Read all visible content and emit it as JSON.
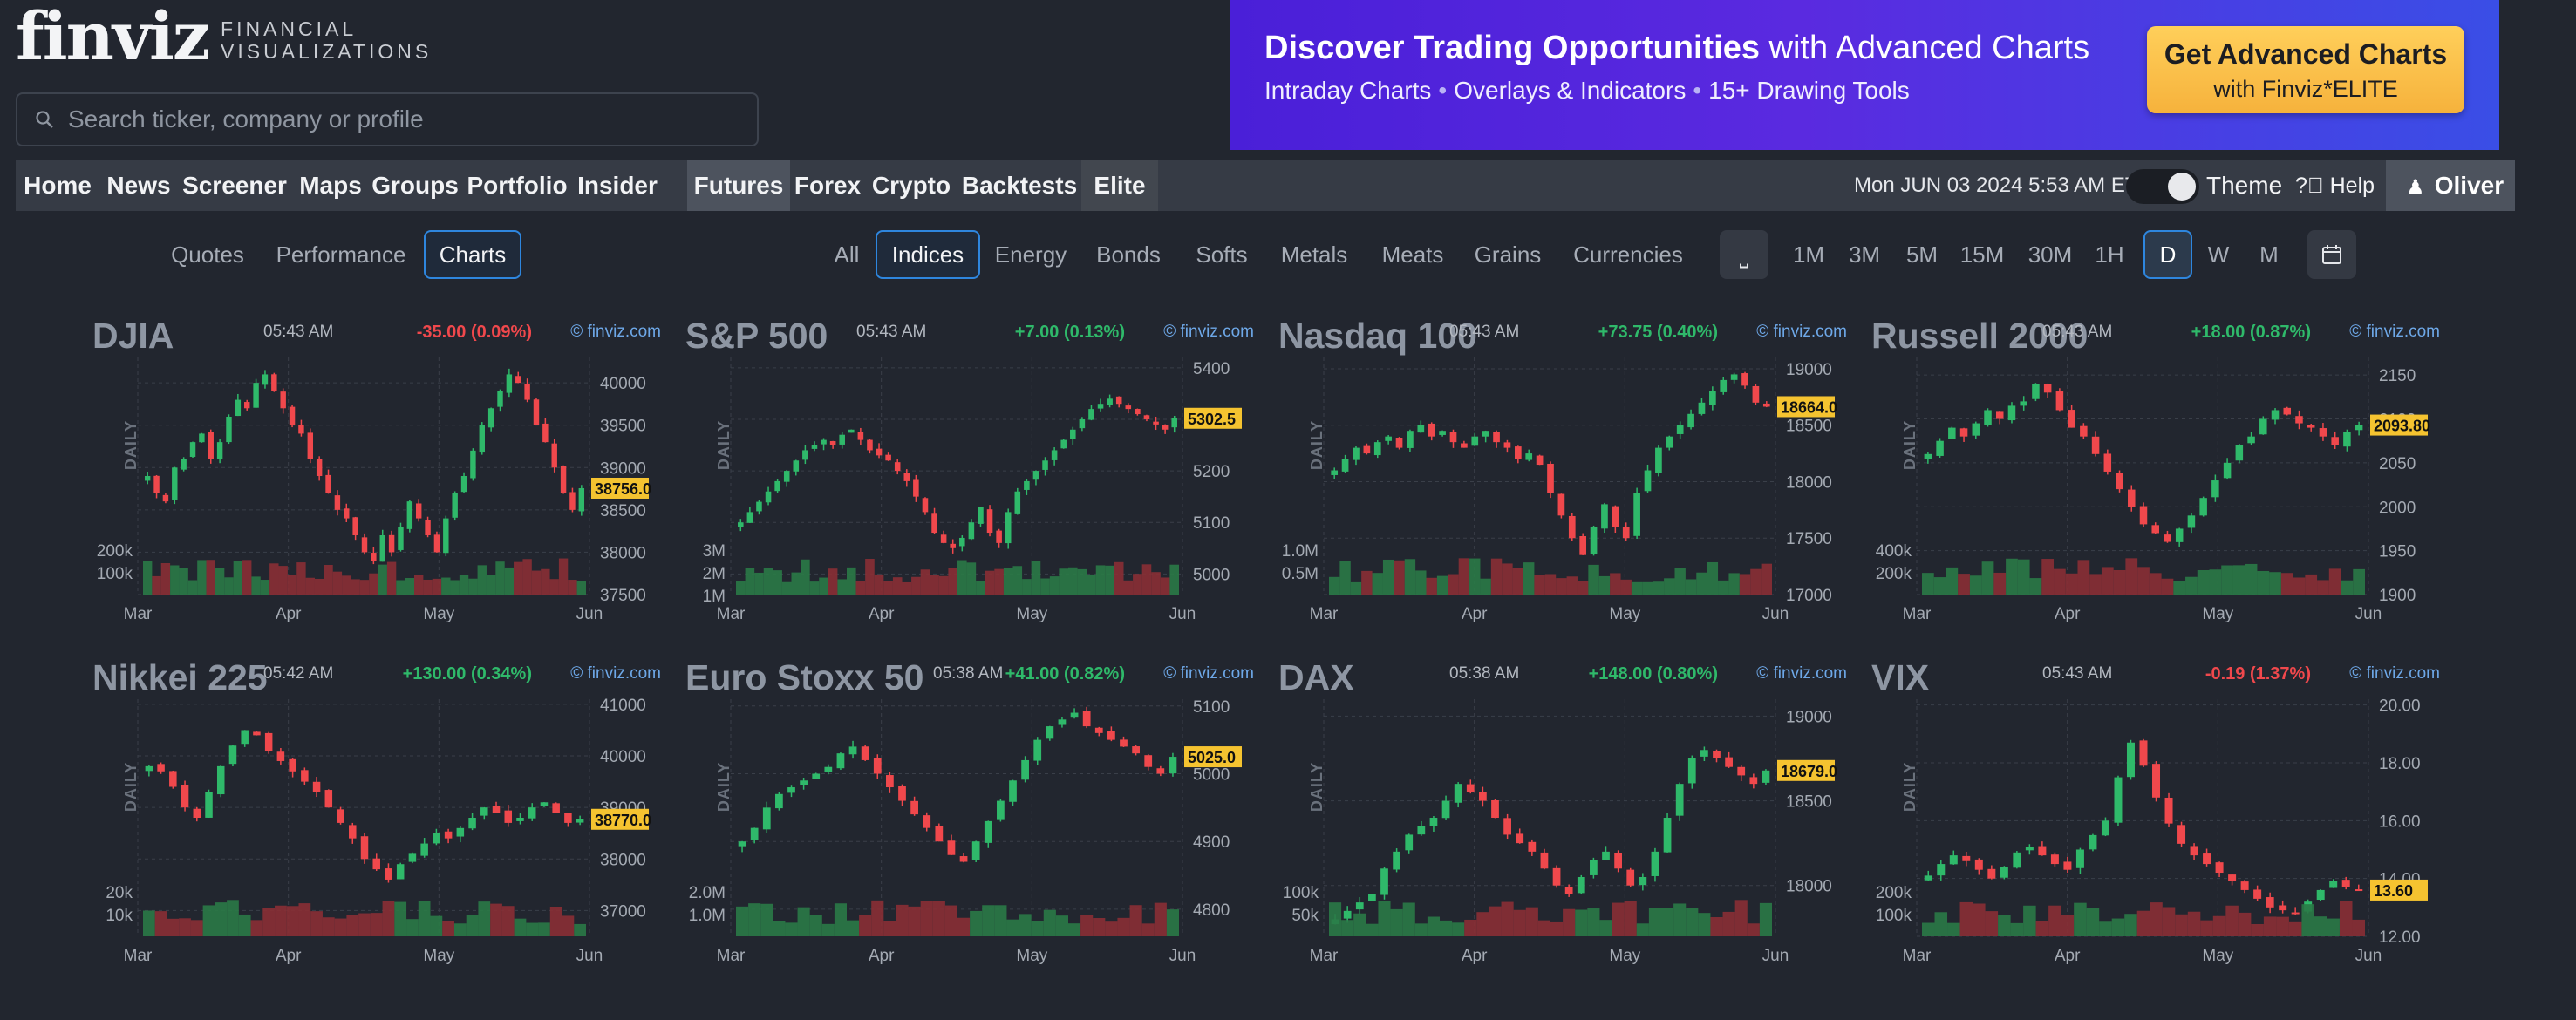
{
  "header": {
    "logo_word": "finviz",
    "logo_tagline": "FINANCIAL VISUALIZATIONS",
    "search_placeholder": "Search ticker, company or profile"
  },
  "banner": {
    "title_bold": "Discover Trading Opportunities",
    "title_rest": "with Advanced Charts",
    "features": [
      "Intraday Charts",
      "Overlays & Indicators",
      "15+ Drawing Tools"
    ],
    "button_line1": "Get Advanced Charts",
    "button_line2": "with Finviz*ELITE"
  },
  "nav": {
    "items": [
      "Home",
      "News",
      "Screener",
      "Maps",
      "Groups",
      "Portfolio",
      "Insider",
      "Futures",
      "Forex",
      "Crypto",
      "Backtests",
      "Elite"
    ],
    "active": "Futures",
    "datetime": "Mon JUN 03 2024 5:53 AM ET",
    "theme_label": "Theme",
    "help_label": "Help",
    "user_label": "Oliver"
  },
  "view_tabs": {
    "items": [
      "Quotes",
      "Performance",
      "Charts"
    ],
    "active": "Charts"
  },
  "category_tabs": {
    "items": [
      "All",
      "Indices",
      "Energy",
      "Bonds",
      "Softs",
      "Metals",
      "Meats",
      "Grains",
      "Currencies"
    ],
    "active": "Indices"
  },
  "timeframes": {
    "items": [
      "1M",
      "3M",
      "5M",
      "15M",
      "30M",
      "1H",
      "D",
      "W",
      "M"
    ],
    "active": "D"
  },
  "colors": {
    "up": "#2fb96a",
    "down": "#f0484c",
    "accent": "#2e86de",
    "price_tag": "#f5c330",
    "background": "#22262f"
  },
  "chart_data": [
    {
      "type": "candlestick",
      "title": "DJIA",
      "time": "05:43 AM",
      "change": "-35.00 (0.09%)",
      "direction": "down",
      "source": "© finviz.com",
      "period_label": "DAILY",
      "price_tag": "38756.0",
      "y_ticks": [
        "40000",
        "39500",
        "39000",
        "38500",
        "38000",
        "37500"
      ],
      "ylim": [
        37500,
        40300
      ],
      "volume_ticks": [
        "200k",
        "100k"
      ],
      "x_ticks": [
        "Mar",
        "Apr",
        "May",
        "Jun"
      ],
      "close": [
        38900,
        38700,
        38600,
        39000,
        39100,
        39300,
        39400,
        39100,
        39300,
        39600,
        39800,
        39700,
        40000,
        40100,
        39900,
        39700,
        39500,
        39400,
        39100,
        38900,
        38700,
        38500,
        38400,
        38200,
        38000,
        37900,
        38200,
        38000,
        38300,
        38600,
        38400,
        38200,
        38000,
        38400,
        38700,
        38900,
        39200,
        39500,
        39700,
        39900,
        40100,
        40000,
        39800,
        39500,
        39300,
        39000,
        38700,
        38500,
        38756
      ]
    },
    {
      "type": "candlestick",
      "title": "S&P 500",
      "time": "05:43 AM",
      "change": "+7.00 (0.13%)",
      "direction": "up",
      "source": "© finviz.com",
      "period_label": "DAILY",
      "price_tag": "5302.5",
      "y_ticks": [
        "5400",
        "5300",
        "5200",
        "5100",
        "5000"
      ],
      "ylim": [
        4960,
        5420
      ],
      "volume_ticks": [
        "3M",
        "2M",
        "1M"
      ],
      "x_ticks": [
        "Mar",
        "Apr",
        "May",
        "Jun"
      ],
      "close": [
        5100,
        5120,
        5140,
        5160,
        5180,
        5200,
        5220,
        5240,
        5250,
        5260,
        5250,
        5270,
        5280,
        5260,
        5240,
        5230,
        5220,
        5200,
        5180,
        5150,
        5120,
        5080,
        5060,
        5050,
        5070,
        5100,
        5130,
        5080,
        5060,
        5120,
        5160,
        5180,
        5200,
        5220,
        5240,
        5260,
        5280,
        5300,
        5320,
        5330,
        5340,
        5330,
        5320,
        5310,
        5300,
        5290,
        5280,
        5302
      ]
    },
    {
      "type": "candlestick",
      "title": "Nasdaq 100",
      "time": "05:43 AM",
      "change": "+73.75 (0.40%)",
      "direction": "up",
      "source": "© finviz.com",
      "period_label": "DAILY",
      "price_tag": "18664.0",
      "y_ticks": [
        "19000",
        "18500",
        "18000",
        "17500",
        "17000"
      ],
      "ylim": [
        17000,
        19100
      ],
      "volume_ticks": [
        "1.0M",
        "0.5M"
      ],
      "x_ticks": [
        "Mar",
        "Apr",
        "May",
        "Jun"
      ],
      "close": [
        18100,
        18200,
        18300,
        18250,
        18350,
        18400,
        18300,
        18450,
        18500,
        18400,
        18450,
        18350,
        18300,
        18400,
        18450,
        18350,
        18300,
        18200,
        18250,
        18150,
        17900,
        17700,
        17500,
        17350,
        17600,
        17800,
        17600,
        17500,
        17900,
        18100,
        18300,
        18400,
        18500,
        18600,
        18700,
        18800,
        18900,
        18950,
        18850,
        18700,
        18664
      ]
    },
    {
      "type": "candlestick",
      "title": "Russell 2000",
      "time": "05:43 AM",
      "change": "+18.00 (0.87%)",
      "direction": "up",
      "source": "© finviz.com",
      "period_label": "DAILY",
      "price_tag": "2093.80",
      "y_ticks": [
        "2150",
        "2100",
        "2050",
        "2000",
        "1950",
        "1900"
      ],
      "ylim": [
        1900,
        2170
      ],
      "volume_ticks": [
        "400k",
        "200k"
      ],
      "x_ticks": [
        "Mar",
        "Apr",
        "May",
        "Jun"
      ],
      "close": [
        2060,
        2075,
        2090,
        2080,
        2095,
        2110,
        2100,
        2115,
        2120,
        2140,
        2130,
        2110,
        2090,
        2080,
        2060,
        2040,
        2020,
        2000,
        1980,
        1970,
        1960,
        1975,
        1990,
        2010,
        2030,
        2050,
        2070,
        2080,
        2100,
        2110,
        2105,
        2095,
        2090,
        2080,
        2070,
        2085,
        2093
      ]
    },
    {
      "type": "candlestick",
      "title": "Nikkei 225",
      "time": "05:42 AM",
      "change": "+130.00 (0.34%)",
      "direction": "up",
      "source": "© finviz.com",
      "period_label": "DAILY",
      "price_tag": "38770.0",
      "y_ticks": [
        "41000",
        "40000",
        "39000",
        "38000",
        "37000"
      ],
      "ylim": [
        36500,
        41100
      ],
      "volume_ticks": [
        "20k",
        "10k"
      ],
      "x_ticks": [
        "Mar",
        "Apr",
        "May",
        "Jun"
      ],
      "close": [
        39800,
        39700,
        39400,
        39000,
        38800,
        39300,
        39800,
        40200,
        40500,
        40400,
        40100,
        39900,
        39700,
        39500,
        39300,
        39000,
        38700,
        38400,
        38000,
        37800,
        37600,
        37900,
        38100,
        38300,
        38500,
        38400,
        38600,
        38800,
        39000,
        38900,
        38700,
        38800,
        39000,
        39100,
        38900,
        38700,
        38770
      ]
    },
    {
      "type": "candlestick",
      "title": "Euro Stoxx 50",
      "time": "05:38 AM",
      "change": "+41.00 (0.82%)",
      "direction": "up",
      "source": "© finviz.com",
      "period_label": "DAILY",
      "price_tag": "5025.0",
      "y_ticks": [
        "5100",
        "5000",
        "4900",
        "4800"
      ],
      "ylim": [
        4760,
        5110
      ],
      "volume_ticks": [
        "2.0M",
        "1.0M"
      ],
      "x_ticks": [
        "Mar",
        "Apr",
        "May",
        "Jun"
      ],
      "close": [
        4900,
        4920,
        4950,
        4970,
        4980,
        4990,
        5000,
        5010,
        5030,
        5040,
        5020,
        5000,
        4980,
        4960,
        4940,
        4920,
        4900,
        4880,
        4870,
        4900,
        4930,
        4960,
        4990,
        5020,
        5050,
        5070,
        5080,
        5090,
        5070,
        5060,
        5050,
        5040,
        5030,
        5010,
        5000,
        5025
      ]
    },
    {
      "type": "candlestick",
      "title": "DAX",
      "time": "05:38 AM",
      "change": "+148.00 (0.80%)",
      "direction": "up",
      "source": "© finviz.com",
      "period_label": "DAILY",
      "price_tag": "18679.0",
      "y_ticks": [
        "19000",
        "18500",
        "18000"
      ],
      "ylim": [
        17700,
        19100
      ],
      "volume_ticks": [
        "100k",
        "50k"
      ],
      "x_ticks": [
        "Mar",
        "Apr",
        "May",
        "Jun"
      ],
      "close": [
        17800,
        17850,
        17900,
        17950,
        18100,
        18200,
        18300,
        18350,
        18400,
        18500,
        18600,
        18550,
        18500,
        18400,
        18300,
        18250,
        18200,
        18100,
        18000,
        17950,
        18050,
        18150,
        18200,
        18100,
        18000,
        18050,
        18200,
        18400,
        18600,
        18750,
        18800,
        18750,
        18700,
        18650,
        18600,
        18679
      ]
    },
    {
      "type": "candlestick",
      "title": "VIX",
      "time": "05:43 AM",
      "change": "-0.19 (1.37%)",
      "direction": "down",
      "source": "© finviz.com",
      "period_label": "DAILY",
      "price_tag": "13.60",
      "y_ticks": [
        "20.00",
        "18.00",
        "16.00",
        "14.00",
        "12.00"
      ],
      "ylim": [
        12,
        20.2
      ],
      "volume_ticks": [
        "200k",
        "100k"
      ],
      "x_ticks": [
        "Mar",
        "Apr",
        "May",
        "Jun"
      ],
      "close": [
        14.1,
        14.5,
        14.8,
        14.6,
        14.3,
        14.0,
        14.4,
        14.9,
        15.1,
        14.8,
        14.5,
        14.3,
        15.0,
        15.5,
        16.0,
        17.5,
        18.7,
        17.9,
        16.8,
        15.9,
        15.2,
        14.8,
        14.5,
        14.2,
        13.9,
        13.6,
        13.3,
        13.0,
        12.9,
        12.8,
        13.2,
        13.6,
        13.9,
        13.7,
        13.6
      ]
    }
  ]
}
